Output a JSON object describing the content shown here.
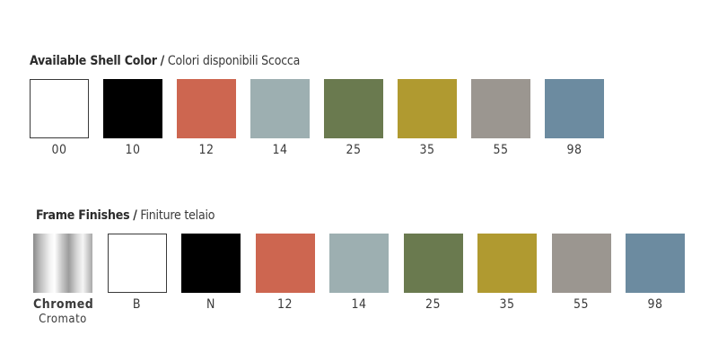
{
  "shell": {
    "title_en": "Available Shell Color",
    "separator": "/",
    "title_it": "Colori disponibili Scocca",
    "swatches": [
      {
        "code": "00",
        "color": "#ffffff"
      },
      {
        "code": "10",
        "color": "#000000"
      },
      {
        "code": "12",
        "color": "#cd6650"
      },
      {
        "code": "14",
        "color": "#9dafb1"
      },
      {
        "code": "25",
        "color": "#6a7a4f"
      },
      {
        "code": "35",
        "color": "#b09a30"
      },
      {
        "code": "55",
        "color": "#9b9690"
      },
      {
        "code": "98",
        "color": "#6c8ba0"
      }
    ]
  },
  "frame": {
    "title_en": "Frame Finishes",
    "separator": "/",
    "title_it": "Finiture telaio",
    "swatches": [
      {
        "code": "Chromed",
        "code2": "Cromato",
        "color": "chrome"
      },
      {
        "code": "B",
        "color": "#ffffff"
      },
      {
        "code": "N",
        "color": "#000000"
      },
      {
        "code": "12",
        "color": "#cd6650"
      },
      {
        "code": "14",
        "color": "#9dafb1"
      },
      {
        "code": "25",
        "color": "#6a7a4f"
      },
      {
        "code": "35",
        "color": "#b09a30"
      },
      {
        "code": "55",
        "color": "#9b9690"
      },
      {
        "code": "98",
        "color": "#6c8ba0"
      }
    ]
  }
}
